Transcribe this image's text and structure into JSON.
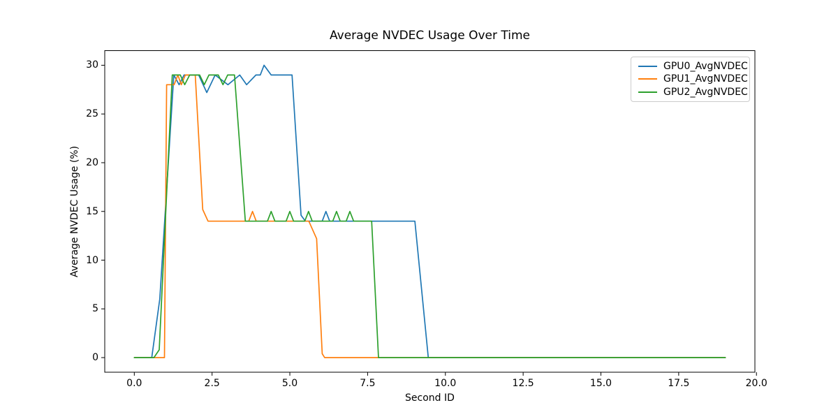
{
  "title": "Average NVDEC Usage Over Time",
  "xlabel": "Second ID",
  "ylabel": "Average NVDEC Usage (%)",
  "legend": {
    "position": "upper right",
    "items": [
      {
        "label": "GPU0_AvgNVDEC",
        "color": "#1f77b4"
      },
      {
        "label": "GPU1_AvgNVDEC",
        "color": "#ff7f0e"
      },
      {
        "label": "GPU2_AvgNVDEC",
        "color": "#2ca02c"
      }
    ]
  },
  "chart_data": {
    "type": "line",
    "title": "Average NVDEC Usage Over Time",
    "xlabel": "Second ID",
    "ylabel": "Average NVDEC Usage (%)",
    "grid": false,
    "legend_position": "upper right",
    "xlim": [
      -0.95,
      19.95
    ],
    "ylim": [
      -1.5,
      31.5
    ],
    "xticks": {
      "values": [
        0,
        2.5,
        5,
        7.5,
        10,
        12.5,
        15,
        17.5,
        20
      ],
      "labels": [
        "0.0",
        "2.5",
        "5.0",
        "7.5",
        "10.0",
        "12.5",
        "15.0",
        "17.5",
        "20.0"
      ]
    },
    "yticks": {
      "values": [
        0,
        5,
        10,
        15,
        20,
        25,
        30
      ],
      "labels": [
        "0",
        "5",
        "10",
        "15",
        "20",
        "25",
        "30"
      ]
    },
    "series": [
      {
        "name": "GPU0_AvgNVDEC",
        "color": "#1f77b4",
        "points": [
          [
            0,
            0
          ],
          [
            0.56,
            0
          ],
          [
            0.82,
            6
          ],
          [
            1.27,
            29
          ],
          [
            1.44,
            28
          ],
          [
            1.6,
            29
          ],
          [
            2.07,
            29
          ],
          [
            2.33,
            27.2
          ],
          [
            2.6,
            29
          ],
          [
            3.01,
            28
          ],
          [
            3.39,
            29
          ],
          [
            3.61,
            28
          ],
          [
            3.91,
            29
          ],
          [
            4.05,
            29
          ],
          [
            4.17,
            30
          ],
          [
            4.4,
            29
          ],
          [
            5.07,
            29
          ],
          [
            5.36,
            14.6
          ],
          [
            5.5,
            14
          ],
          [
            6.04,
            14
          ],
          [
            6.16,
            15
          ],
          [
            6.28,
            14
          ],
          [
            9.02,
            14
          ],
          [
            9.45,
            0
          ],
          [
            19,
            0
          ]
        ]
      },
      {
        "name": "GPU1_AvgNVDEC",
        "color": "#ff7f0e",
        "points": [
          [
            0,
            0
          ],
          [
            0.97,
            0
          ],
          [
            1.04,
            28
          ],
          [
            1.28,
            28
          ],
          [
            1.4,
            29
          ],
          [
            1.51,
            28
          ],
          [
            1.64,
            29
          ],
          [
            1.96,
            29
          ],
          [
            2.2,
            15.2
          ],
          [
            2.37,
            14
          ],
          [
            3.68,
            14
          ],
          [
            3.8,
            15
          ],
          [
            3.92,
            14
          ],
          [
            5.61,
            14
          ],
          [
            5.86,
            12.2
          ],
          [
            6.04,
            0.4
          ],
          [
            6.12,
            0
          ],
          [
            19,
            0
          ]
        ]
      },
      {
        "name": "GPU2_AvgNVDEC",
        "color": "#2ca02c",
        "points": [
          [
            0,
            0
          ],
          [
            0.63,
            0
          ],
          [
            0.8,
            0.8
          ],
          [
            1.22,
            29
          ],
          [
            1.48,
            29
          ],
          [
            1.62,
            28
          ],
          [
            1.78,
            29
          ],
          [
            2.1,
            29
          ],
          [
            2.25,
            28
          ],
          [
            2.4,
            29
          ],
          [
            2.7,
            29
          ],
          [
            2.85,
            28
          ],
          [
            3.0,
            29
          ],
          [
            3.22,
            29
          ],
          [
            3.57,
            14
          ],
          [
            4.28,
            14
          ],
          [
            4.4,
            15
          ],
          [
            4.52,
            14
          ],
          [
            4.88,
            14
          ],
          [
            5.0,
            15
          ],
          [
            5.12,
            14
          ],
          [
            5.48,
            14
          ],
          [
            5.6,
            15
          ],
          [
            5.72,
            14
          ],
          [
            6.38,
            14
          ],
          [
            6.5,
            15
          ],
          [
            6.62,
            14
          ],
          [
            6.81,
            14
          ],
          [
            6.93,
            15
          ],
          [
            7.05,
            14
          ],
          [
            7.63,
            14
          ],
          [
            7.85,
            0
          ],
          [
            19,
            0
          ]
        ]
      }
    ]
  }
}
